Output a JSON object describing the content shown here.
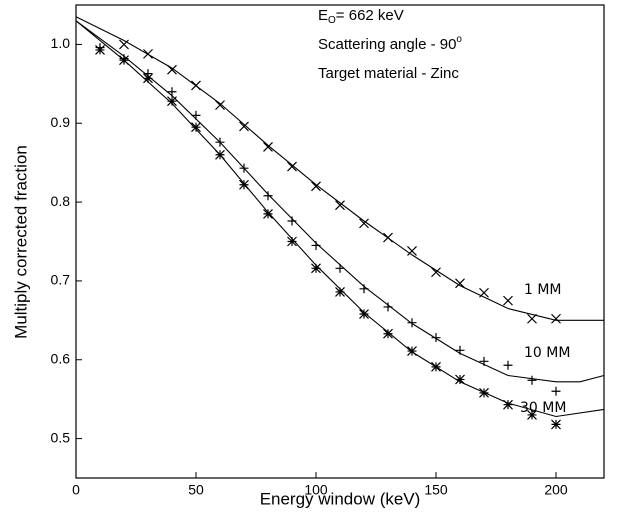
{
  "chart_data": {
    "type": "scatter",
    "xlabel": "Energy window (keV)",
    "ylabel": "Multiply corrected fraction",
    "xlim": [
      0,
      220
    ],
    "ylim": [
      0.45,
      1.05
    ],
    "xticks": [
      0,
      50,
      100,
      150,
      200
    ],
    "yticks": [
      0.5,
      0.6,
      0.7,
      0.8,
      0.9,
      {
        "value": 1,
        "label": "1.0"
      }
    ],
    "color": "#000000",
    "annotations": {
      "energy": {
        "symbol": "E",
        "sub": "O",
        "text": "= 662 keV"
      },
      "angle": {
        "text": "Scattering angle - 90",
        "sup": "o"
      },
      "target": "Target material - Zinc"
    },
    "series": [
      {
        "name": "1 MM",
        "marker": "x",
        "x": [
          20,
          30,
          40,
          50,
          60,
          70,
          80,
          90,
          100,
          110,
          120,
          130,
          140,
          150,
          160,
          170,
          180,
          190,
          200
        ],
        "values": [
          1.0,
          0.988,
          0.968,
          0.948,
          0.923,
          0.896,
          0.87,
          0.845,
          0.82,
          0.796,
          0.773,
          0.755,
          0.738,
          0.711,
          0.697,
          0.685,
          0.675,
          0.652,
          0.652
        ]
      },
      {
        "name": "10 MM",
        "marker": "plus",
        "x": [
          10,
          20,
          30,
          40,
          50,
          60,
          70,
          80,
          90,
          100,
          110,
          120,
          130,
          140,
          150,
          160,
          170,
          180,
          190,
          200
        ],
        "values": [
          0.996,
          0.982,
          0.963,
          0.94,
          0.91,
          0.876,
          0.843,
          0.808,
          0.776,
          0.745,
          0.716,
          0.69,
          0.667,
          0.647,
          0.628,
          0.612,
          0.598,
          0.593,
          0.574,
          0.56
        ]
      },
      {
        "name": "30 MM",
        "marker": "star",
        "x": [
          10,
          20,
          30,
          40,
          50,
          60,
          70,
          80,
          90,
          100,
          110,
          120,
          130,
          140,
          150,
          160,
          170,
          180,
          190,
          200
        ],
        "values": [
          0.993,
          0.98,
          0.957,
          0.928,
          0.895,
          0.86,
          0.822,
          0.785,
          0.75,
          0.716,
          0.686,
          0.658,
          0.633,
          0.611,
          0.591,
          0.575,
          0.558,
          0.543,
          0.53,
          0.518
        ]
      }
    ],
    "fits": [
      {
        "x": [
          0,
          20,
          40,
          60,
          80,
          100,
          120,
          140,
          160,
          180,
          200,
          220
        ],
        "values": [
          1.035,
          1.005,
          0.97,
          0.925,
          0.872,
          0.822,
          0.776,
          0.733,
          0.694,
          0.665,
          0.65,
          0.65
        ]
      },
      {
        "x": [
          0,
          20,
          40,
          60,
          80,
          100,
          120,
          140,
          160,
          180,
          200,
          210,
          220
        ],
        "values": [
          1.03,
          0.985,
          0.935,
          0.876,
          0.81,
          0.748,
          0.693,
          0.646,
          0.608,
          0.58,
          0.572,
          0.572,
          0.58
        ]
      },
      {
        "x": [
          0,
          20,
          40,
          60,
          80,
          100,
          120,
          140,
          160,
          180,
          200,
          220
        ],
        "values": [
          1.03,
          0.98,
          0.925,
          0.86,
          0.787,
          0.72,
          0.66,
          0.61,
          0.572,
          0.545,
          0.528,
          0.537
        ]
      }
    ]
  }
}
